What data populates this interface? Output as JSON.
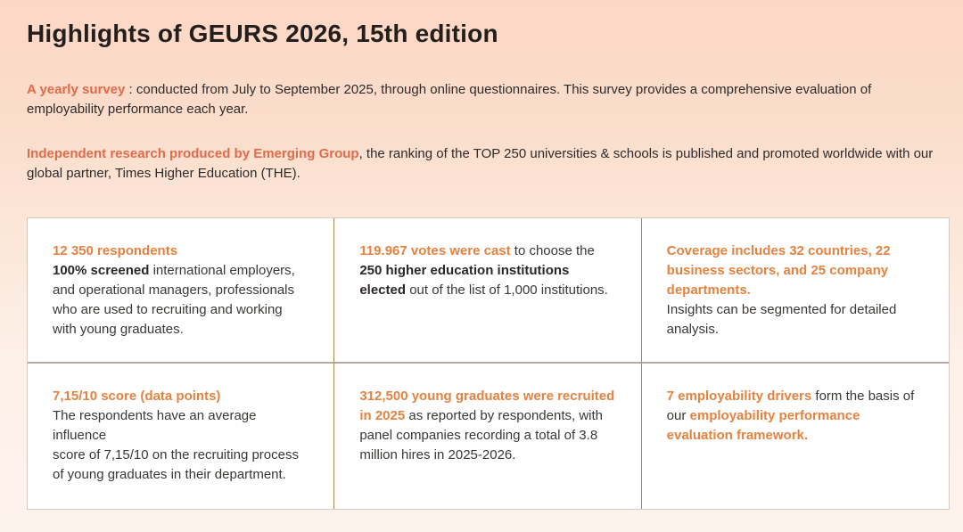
{
  "page": {
    "title": "Highlights of GEURS 2026, 15th edition"
  },
  "intro": {
    "survey": {
      "lead": "A yearly survey",
      "rest": " : conducted from July to September 2025, through online questionnaires. This survey provides a comprehensive evaluation of employability performance each year."
    },
    "research": {
      "lead": "Independent research produced by Emerging Group",
      "rest": ", the ranking of the TOP 250 universities & schools is published and promoted worldwide with our global partner, Times Higher Education (THE)."
    }
  },
  "grid": {
    "cells": {
      "respondents": {
        "heading": "12 350 respondents",
        "body_bold": "100% screened",
        "body_rest": " international employers, and operational managers, professionals who are used to recruiting and working with young graduates."
      },
      "votes": {
        "accent": "119.967 votes were cast",
        "mid": " to choose the ",
        "bold": "250 higher education institutions elected",
        "rest": " out of the list of 1,000 institutions."
      },
      "coverage": {
        "heading": "Coverage includes 32 countries, 22 business sectors, and 25 company departments.",
        "body": "Insights can be segmented for detailed analysis."
      },
      "score": {
        "heading": "7,15/10 score (data points)",
        "body_line1": "The respondents have an average influence",
        "body_line2": "score of 7,15/10 on the recruiting process of young graduates in their department."
      },
      "recruited": {
        "accent": "312,500 young graduates were recruited in 2025",
        "rest": " as reported by respondents, with panel companies recording a total of 3.8 million hires in 2025-2026."
      },
      "drivers": {
        "accent": "7 employability drivers",
        "mid": " form the basis of our ",
        "accent2": "employability performance evaluation framework."
      }
    }
  },
  "colors": {
    "background_top": "#fcd7c5",
    "background_bottom": "#fdf3ed",
    "title_text": "#241f1d",
    "body_text": "#33302e",
    "paragraph_accent": "#e06b4b",
    "cell_accent": "#e5823f",
    "panel_background": "#ffffff",
    "panel_border": "#d6ccc4",
    "divider_vertical": "#a3804f",
    "divider_horizontal": "#b7a9a5"
  }
}
